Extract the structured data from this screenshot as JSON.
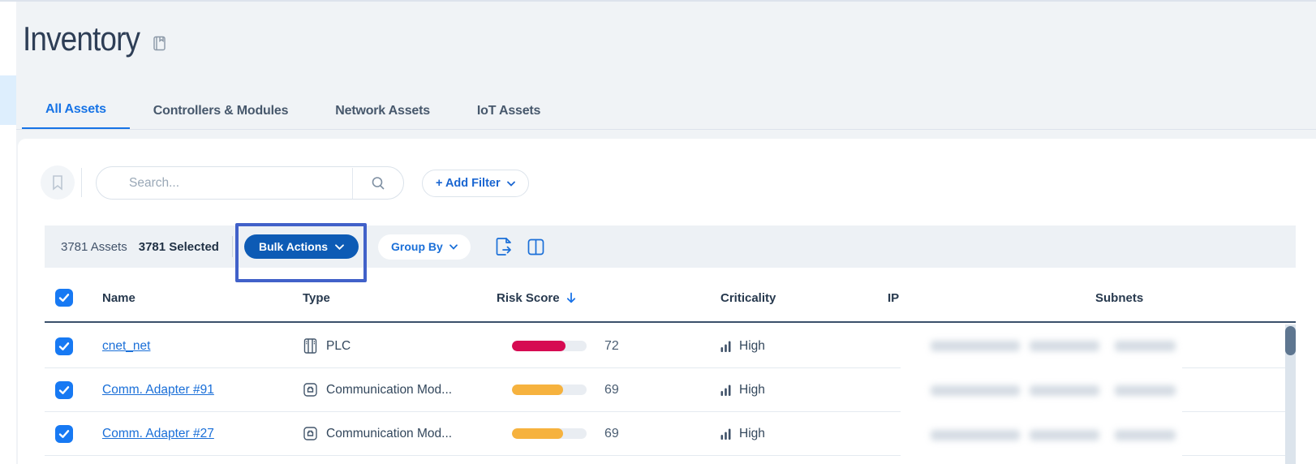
{
  "page": {
    "title": "Inventory",
    "title_icon": "book-icon"
  },
  "tabs": [
    {
      "label": "All Assets",
      "active": true
    },
    {
      "label": "Controllers & Modules",
      "active": false
    },
    {
      "label": "Network Assets",
      "active": false
    },
    {
      "label": "IoT Assets",
      "active": false
    }
  ],
  "filter_bar": {
    "bookmark_icon": "bookmark-icon",
    "search_placeholder": "Search...",
    "search_icon": "search-icon",
    "add_filter_label": "+ Add Filter"
  },
  "toolbar": {
    "assets_count": "3781 Assets",
    "selected_count": "3781 Selected",
    "bulk_actions_label": "Bulk Actions",
    "group_by_label": "Group By",
    "export_icon": "export-icon",
    "columns_icon": "columns-icon"
  },
  "annotation": {
    "type": "highlight-rectangle",
    "target": "bulk-actions-button",
    "border_color": "#4161c9"
  },
  "table": {
    "select_all_checked": true,
    "columns": [
      {
        "label": "Name"
      },
      {
        "label": "Type"
      },
      {
        "label": "Risk Score",
        "sorted": "desc"
      },
      {
        "label": "Criticality"
      },
      {
        "label": "IP"
      },
      {
        "label": "Subnets"
      }
    ],
    "rows": [
      {
        "selected": true,
        "name": "cnet_net",
        "type": "PLC",
        "type_icon": "plc-icon",
        "risk_score": 72,
        "risk_color": "#d60b52",
        "criticality": "High",
        "criticality_icon": "bar-chart-icon",
        "ip_redacted": true,
        "subnets_redacted": true
      },
      {
        "selected": true,
        "name": "Comm. Adapter #91",
        "type": "Communication Mod...",
        "type_icon": "comm-module-icon",
        "risk_score": 69,
        "risk_color": "#f6b23e",
        "criticality": "High",
        "criticality_icon": "bar-chart-icon",
        "ip_redacted": true,
        "subnets_redacted": true
      },
      {
        "selected": true,
        "name": "Comm. Adapter #27",
        "type": "Communication Mod...",
        "type_icon": "comm-module-icon",
        "risk_score": 69,
        "risk_color": "#f6b23e",
        "criticality": "High",
        "criticality_icon": "bar-chart-icon",
        "ip_redacted": true,
        "subnets_redacted": true
      }
    ]
  },
  "colors": {
    "active_tab_blue": "#1673e6",
    "link_blue": "#1a6fd8",
    "bulk_button_bg": "#0d5bb5",
    "risk_red": "#d60b52",
    "risk_orange": "#f6b23e",
    "annotation_border": "#4161c9",
    "scrollbar_thumb": "#5e7690"
  }
}
